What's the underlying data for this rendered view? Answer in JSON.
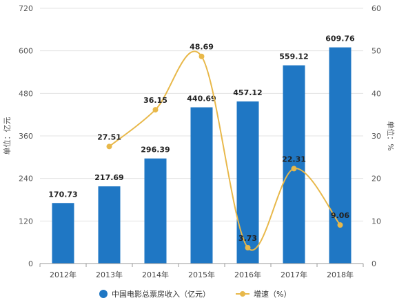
{
  "chart_data": {
    "type": "bar+line",
    "categories": [
      "2012年",
      "2013年",
      "2014年",
      "2015年",
      "2016年",
      "2017年",
      "2018年"
    ],
    "series": [
      {
        "name": "中国电影总票房收入（亿元）",
        "type": "bar",
        "axis": "left",
        "values": [
          170.73,
          217.69,
          296.39,
          440.69,
          457.12,
          559.12,
          609.76
        ],
        "labels": [
          "170.73",
          "217.69",
          "296.39",
          "440.69",
          "457.12",
          "559.12",
          "609.76"
        ],
        "color": "#1f77c4"
      },
      {
        "name": "增速（%）",
        "type": "line",
        "axis": "right",
        "values": [
          null,
          27.51,
          36.15,
          48.69,
          3.73,
          22.31,
          9.06
        ],
        "labels": [
          "",
          "27.51",
          "36.15",
          "48.69",
          "3.73",
          "22.31",
          "9.06"
        ],
        "color": "#e8b84a"
      }
    ],
    "ylabel_left": "单位：亿元",
    "ylabel_right": "单位：%",
    "ylim_left": [
      0,
      720
    ],
    "yticks_left": [
      "0",
      "120",
      "240",
      "360",
      "480",
      "600",
      "720"
    ],
    "ylim_right": [
      0,
      60
    ],
    "yticks_right": [
      "0",
      "10",
      "20",
      "30",
      "40",
      "50",
      "60"
    ],
    "grid": true,
    "legend_position": "bottom"
  }
}
